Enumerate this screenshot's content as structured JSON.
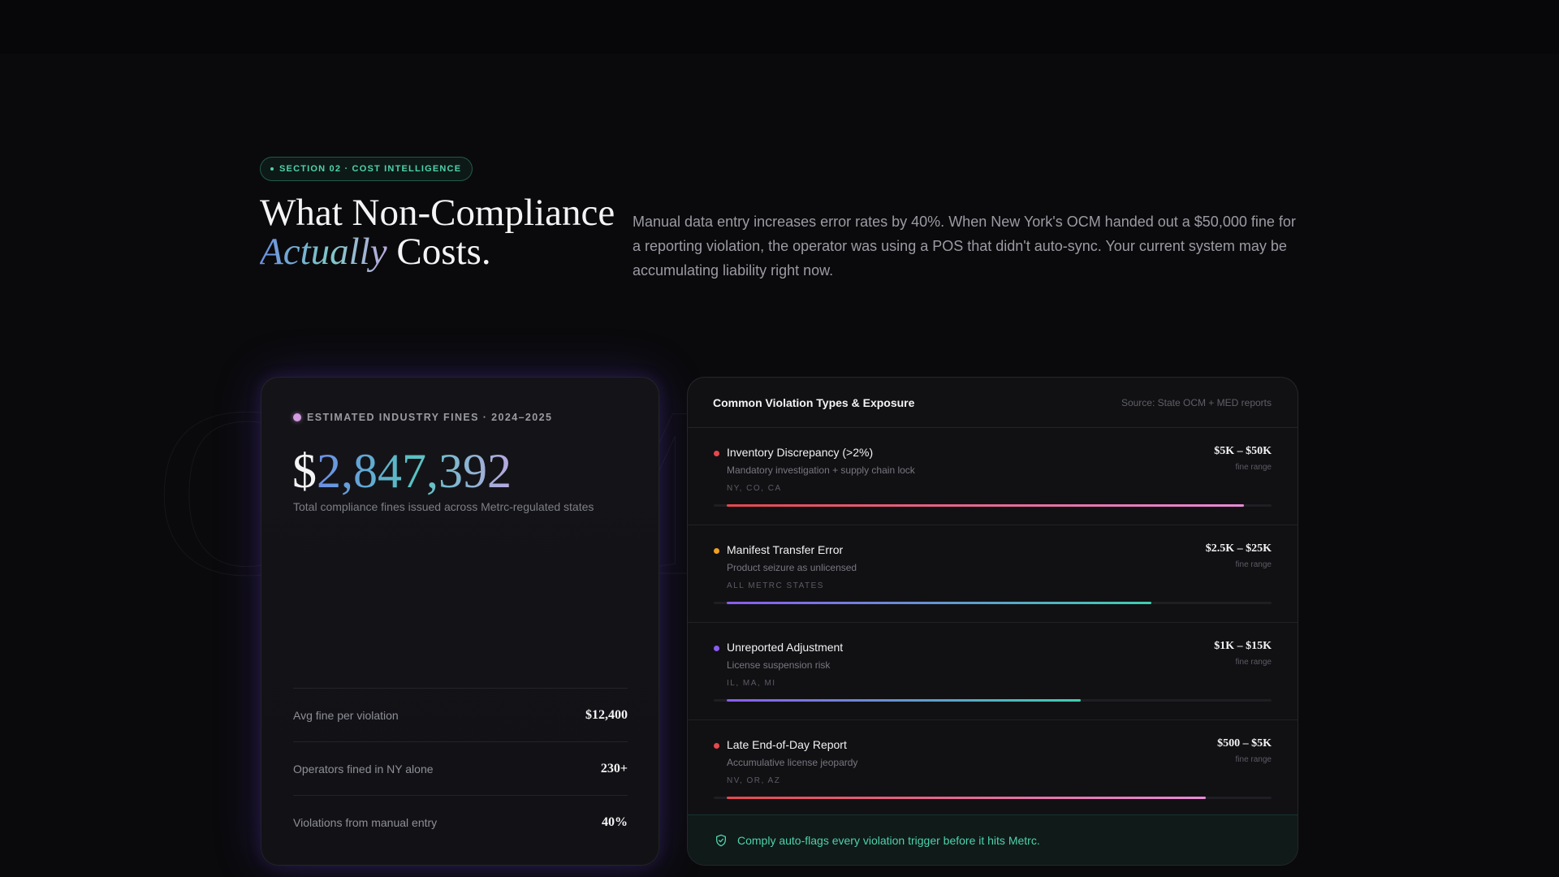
{
  "badge": {
    "label": "SECTION 02 · COST INTELLIGENCE"
  },
  "headline": {
    "part1": "What Non-Compliance ",
    "accent": "Actually",
    "part2": " Costs."
  },
  "intro": "Manual data entry increases error rates by 40%. When New York's OCM handed out a $50,000 fine for a reporting violation, the operator was using a POS that didn't auto-sync. Your current system may be accumulating liability right now.",
  "fines_card": {
    "label": "ESTIMATED INDUSTRY FINES · 2024–2025",
    "currency": "$",
    "amount": "2,847,392",
    "caption": "Total compliance fines issued across Metrc-regulated states",
    "stats": [
      {
        "label": "Avg fine per violation",
        "value": "$12,400"
      },
      {
        "label": "Operators fined in NY alone",
        "value": "230+"
      },
      {
        "label": "Violations from manual entry",
        "value": "40%"
      }
    ]
  },
  "violations_card": {
    "title": "Common Violation Types & Exposure",
    "source": "Source: State OCM + MED reports",
    "items": [
      {
        "name": "Inventory Discrepancy (>2%)",
        "desc": "Mandatory investigation + supply chain lock",
        "states": "NY, CO, CA",
        "range": "$5K – $50K",
        "range_sub": "fine range",
        "level": 0.95,
        "dot": "#e5484d",
        "gradient": [
          "#e5484d",
          "#e98ad8"
        ]
      },
      {
        "name": "Manifest Transfer Error",
        "desc": "Product seizure as unlicensed",
        "states": "ALL METRC STATES",
        "range": "$2.5K – $25K",
        "range_sub": "fine range",
        "level": 0.78,
        "dot": "#f0a020",
        "gradient": [
          "#8a5cf0",
          "#3fcfb0"
        ]
      },
      {
        "name": "Unreported Adjustment",
        "desc": "License suspension risk",
        "states": "IL, MA, MI",
        "range": "$1K – $15K",
        "range_sub": "fine range",
        "level": 0.65,
        "dot": "#8a5cf0",
        "gradient": [
          "#8a5cf0",
          "#3fcfb0"
        ]
      },
      {
        "name": "Late End-of-Day Report",
        "desc": "Accumulative license jeopardy",
        "states": "NV, OR, AZ",
        "range": "$500 – $5K",
        "range_sub": "fine range",
        "level": 0.88,
        "dot": "#e5484d",
        "gradient": [
          "#e5484d",
          "#e98ad8"
        ]
      }
    ],
    "footer": "Comply auto-flags every violation trigger before it hits Metrc."
  }
}
